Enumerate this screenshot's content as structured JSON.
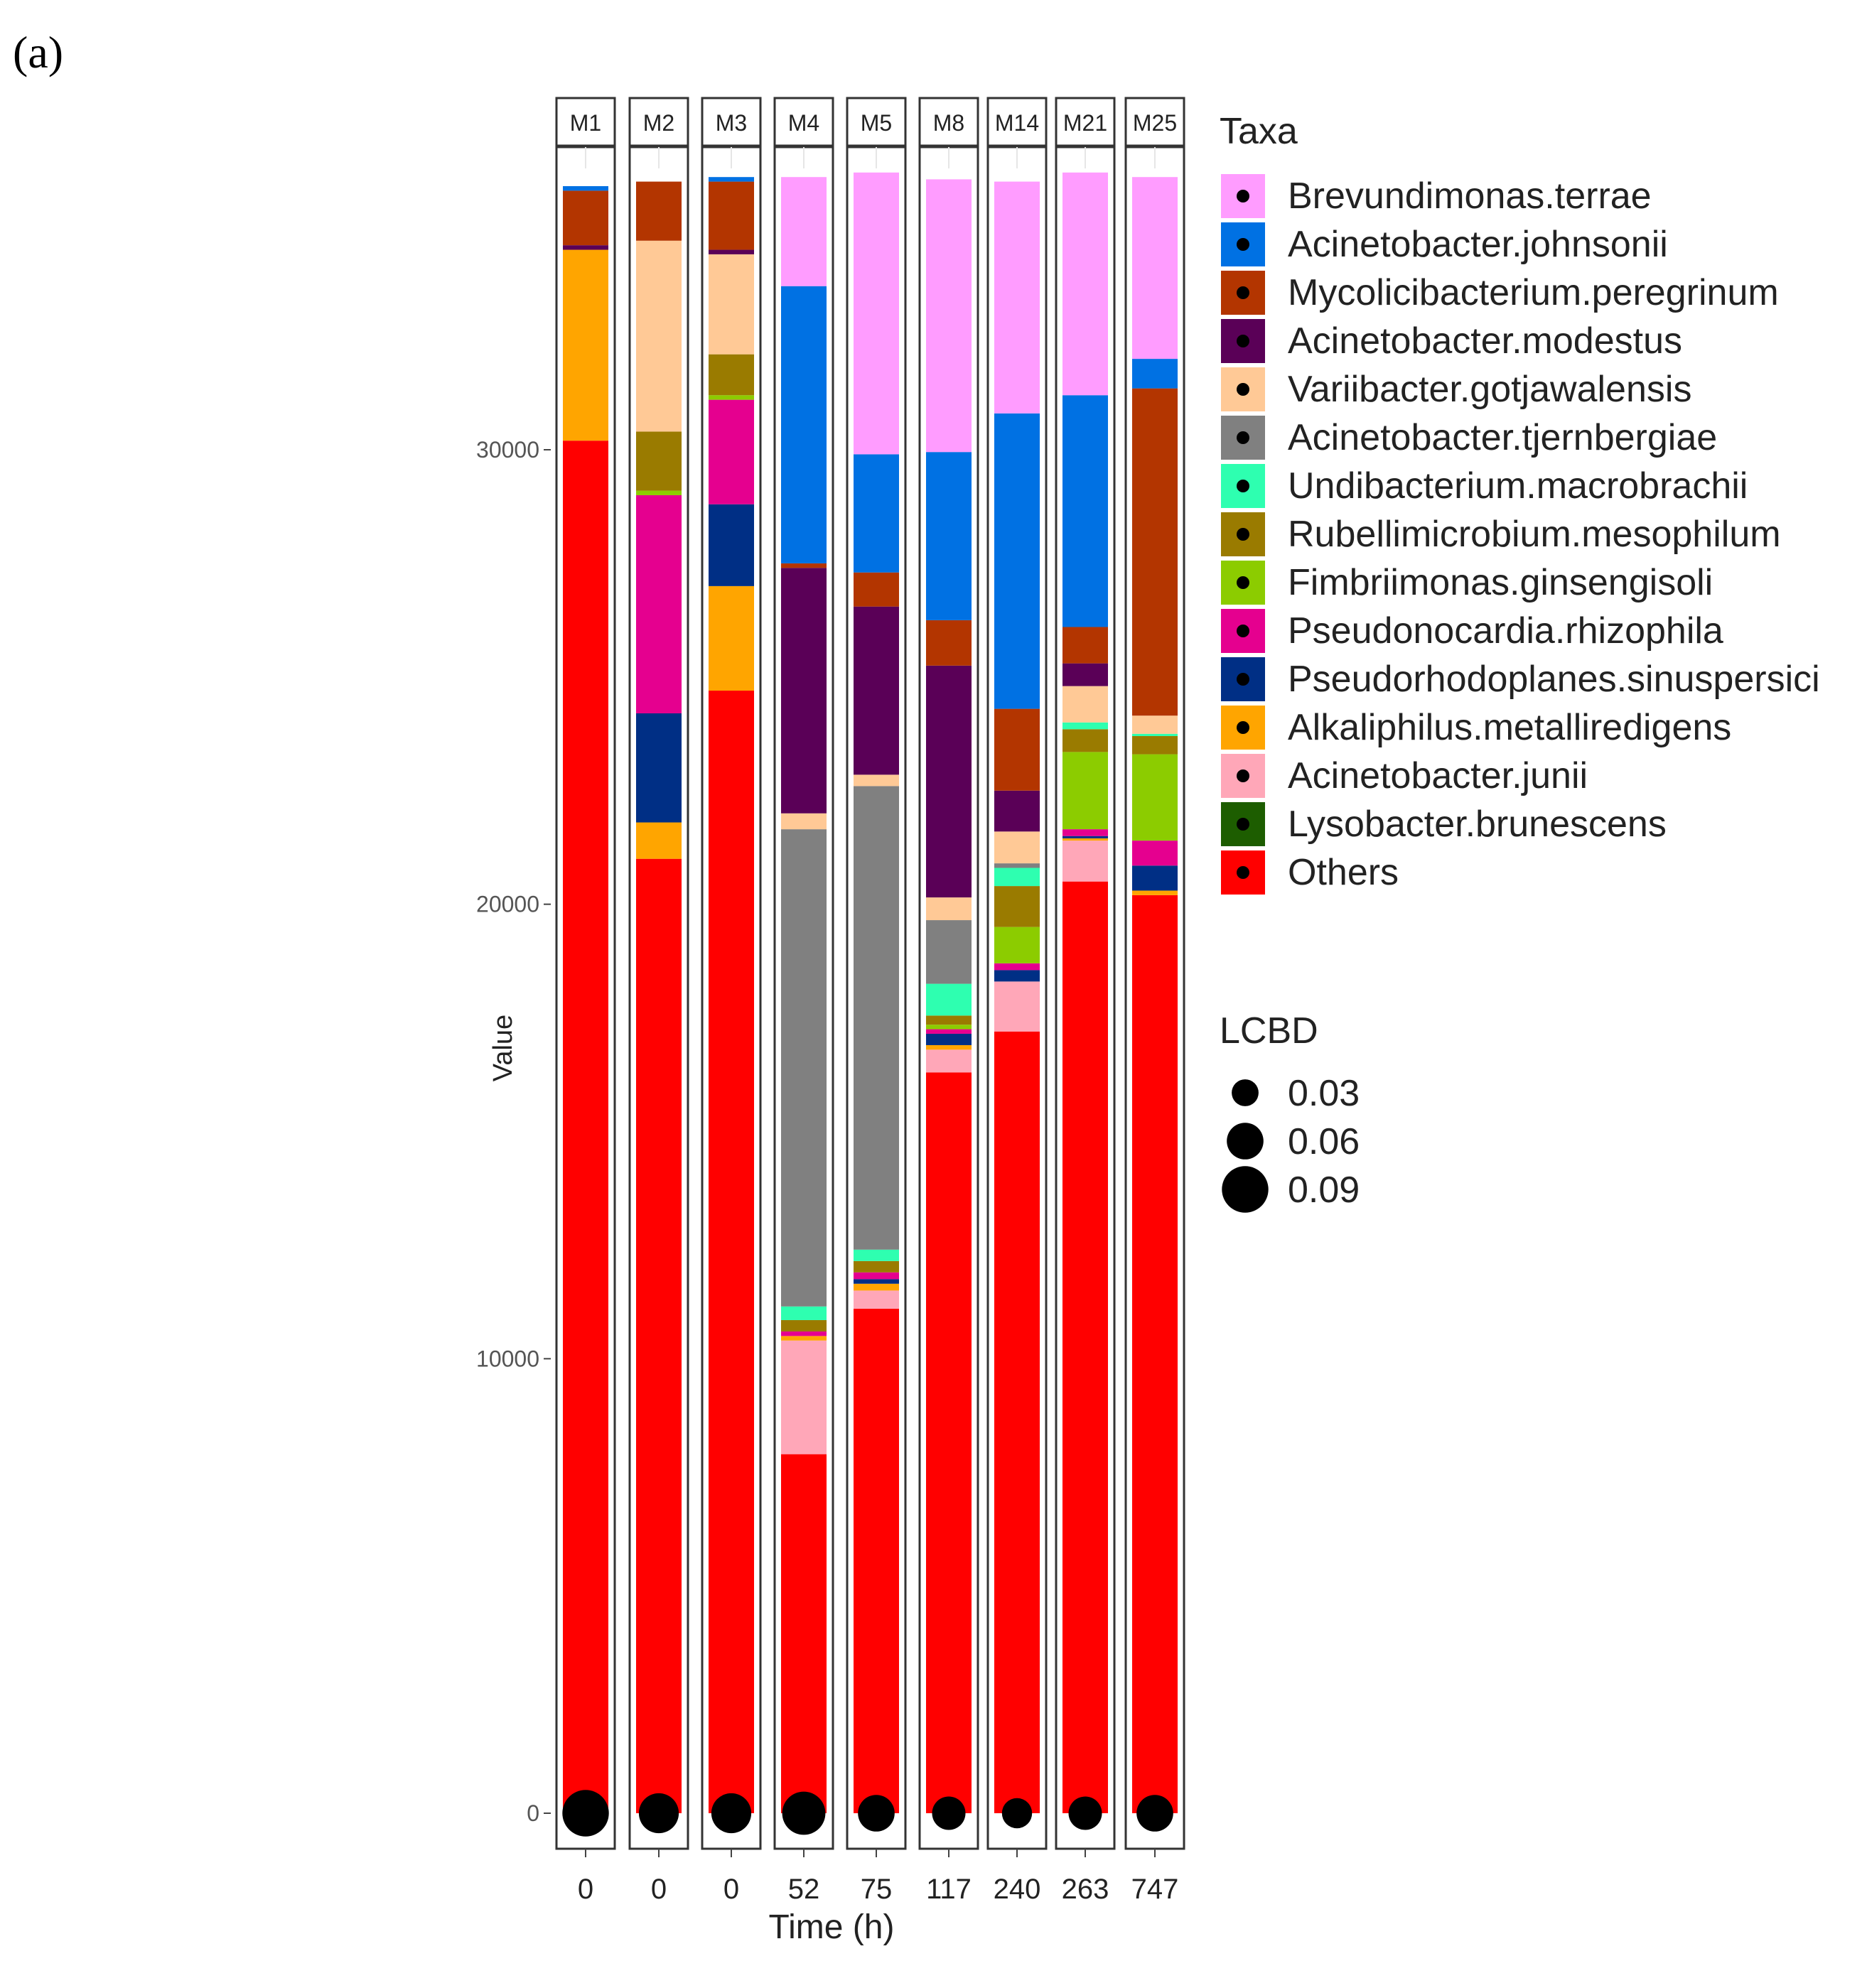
{
  "panel_label": "(a)",
  "chart_data": {
    "type": "bar",
    "stacked": true,
    "facets": [
      "M1",
      "M2",
      "M3",
      "M4",
      "M5",
      "M8",
      "M14",
      "M21",
      "M25"
    ],
    "categories": [
      "0",
      "0",
      "0",
      "52",
      "75",
      "117",
      "240",
      "263",
      "747"
    ],
    "xlabel": "Time (h)",
    "ylabel": "Value",
    "ylim": [
      0,
      36000
    ],
    "yticks": [
      0,
      10000,
      20000,
      30000
    ],
    "grid": false,
    "legend_title": "Taxa",
    "colors": {
      "Brevundimonas.terrae": "#ff9cff",
      "Acinetobacter.johnsonii": "#0071e3",
      "Mycolicibacterium.peregrinum": "#b33500",
      "Acinetobacter.modestus": "#5a0057",
      "Variibacter.gotjawalensis": "#ffc996",
      "Acinetobacter.tjernbergiae": "#808080",
      "Undibacterium.macrobrachii": "#2effb0",
      "Rubellimicrobium.mesophilum": "#9a7b00",
      "Fimbriimonas.ginsengisoli": "#8ccc00",
      "Pseudonocardia.rhizophila": "#e5008f",
      "Pseudorhodoplanes.sinuspersici": "#002f85",
      "Alkaliphilus.metalliredigens": "#ffa500",
      "Acinetobacter.junii": "#ffa7b8",
      "Lysobacter.brunescens": "#1d5d00",
      "Others": "#ff0000"
    },
    "series": [
      {
        "name": "Others",
        "values": [
          30200,
          21000,
          24700,
          7900,
          11100,
          16300,
          17200,
          20500,
          20200
        ]
      },
      {
        "name": "Lysobacter.brunescens",
        "values": [
          0,
          0,
          0,
          0,
          0,
          0,
          0,
          0,
          0
        ]
      },
      {
        "name": "Acinetobacter.junii",
        "values": [
          0,
          0,
          0,
          2500,
          400,
          500,
          1100,
          900,
          0
        ]
      },
      {
        "name": "Alkaliphilus.metalliredigens",
        "values": [
          4200,
          800,
          2300,
          100,
          150,
          100,
          0,
          50,
          100
        ]
      },
      {
        "name": "Pseudorhodoplanes.sinuspersici",
        "values": [
          0,
          2400,
          1800,
          0,
          100,
          250,
          250,
          50,
          550
        ]
      },
      {
        "name": "Pseudonocardia.rhizophila",
        "values": [
          0,
          4800,
          2300,
          100,
          150,
          100,
          150,
          150,
          550
        ]
      },
      {
        "name": "Fimbriimonas.ginsengisoli",
        "values": [
          0,
          100,
          100,
          0,
          0,
          100,
          800,
          1700,
          1900
        ]
      },
      {
        "name": "Rubellimicrobium.mesophilum",
        "values": [
          0,
          1300,
          900,
          250,
          250,
          200,
          900,
          500,
          400
        ]
      },
      {
        "name": "Undibacterium.macrobrachii",
        "values": [
          0,
          0,
          0,
          300,
          250,
          700,
          400,
          150,
          50
        ]
      },
      {
        "name": "Acinetobacter.tjernbergiae",
        "values": [
          0,
          0,
          0,
          10500,
          10200,
          1400,
          100,
          0,
          0
        ]
      },
      {
        "name": "Variibacter.gotjawalensis",
        "values": [
          0,
          4200,
          2200,
          350,
          250,
          500,
          700,
          800,
          400
        ]
      },
      {
        "name": "Acinetobacter.modestus",
        "values": [
          100,
          0,
          100,
          5400,
          3700,
          5100,
          900,
          500,
          0
        ]
      },
      {
        "name": "Mycolicibacterium.peregrinum",
        "values": [
          1200,
          1300,
          1500,
          100,
          750,
          1000,
          1800,
          800,
          7200
        ]
      },
      {
        "name": "Acinetobacter.johnsonii",
        "values": [
          100,
          0,
          100,
          6100,
          2600,
          3700,
          6500,
          5100,
          650
        ]
      },
      {
        "name": "Brevundimonas.terrae",
        "values": [
          0,
          0,
          0,
          2400,
          6200,
          6000,
          5100,
          4900,
          4000
        ]
      }
    ],
    "lcbd": [
      0.09,
      0.07,
      0.07,
      0.08,
      0.06,
      0.05,
      0.04,
      0.05,
      0.06
    ],
    "lcbd_legend": {
      "title": "LCBD",
      "labels": [
        "0.03",
        "0.06",
        "0.09"
      ],
      "values": [
        0.03,
        0.06,
        0.09
      ]
    }
  }
}
